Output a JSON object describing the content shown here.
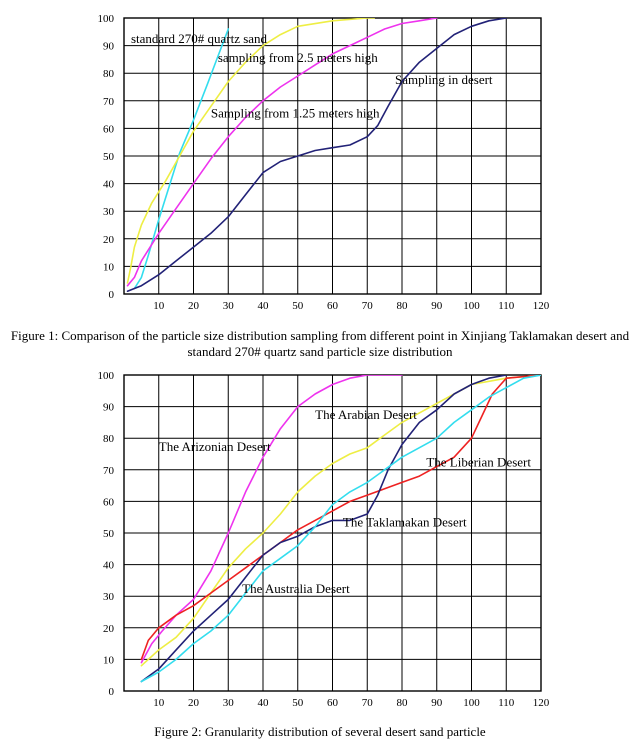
{
  "figure1_caption": "Figure 1: Comparison of the particle size distribution sampling from different point in Xinjiang Taklamakan desert and standard 270# quartz sand particle size distribution",
  "figure2_caption": "Figure 2:  Granularity distribution of several desert sand particle",
  "chart_data": [
    {
      "type": "line",
      "title": "",
      "xlabel": "",
      "ylabel": "",
      "xlim": [
        0,
        120
      ],
      "ylim": [
        0,
        100
      ],
      "xticks": [
        10,
        20,
        30,
        40,
        50,
        60,
        70,
        80,
        90,
        100,
        110,
        120
      ],
      "yticks": [
        0,
        10,
        20,
        30,
        40,
        50,
        60,
        70,
        80,
        90,
        100
      ],
      "grid": true,
      "series": [
        {
          "name": "standard 270# quartz sand",
          "color": "#33ddee",
          "x": [
            3,
            5,
            7,
            10,
            13,
            16,
            20,
            24,
            27,
            30
          ],
          "y": [
            2,
            6,
            14,
            27,
            39,
            51,
            63,
            76,
            86,
            96
          ]
        },
        {
          "name": "sampling from 2.5 meters high",
          "color": "#eeee44",
          "x": [
            1,
            2,
            3,
            5,
            8,
            12,
            16,
            20,
            25,
            30,
            35,
            40,
            45,
            50,
            60,
            70,
            72
          ],
          "y": [
            4,
            10,
            17,
            25,
            33,
            41,
            50,
            59,
            68,
            77,
            84,
            90,
            94,
            97,
            99,
            100,
            100
          ]
        },
        {
          "name": "Sampling from 1.25 meters high",
          "color": "#ee33ee",
          "x": [
            1,
            3,
            5,
            10,
            15,
            20,
            25,
            30,
            35,
            40,
            45,
            50,
            55,
            60,
            65,
            70,
            75,
            80,
            85,
            90
          ],
          "y": [
            3,
            6,
            12,
            22,
            31,
            40,
            49,
            57,
            64,
            70,
            75,
            79,
            83,
            87,
            90,
            93,
            96,
            98,
            99,
            100
          ]
        },
        {
          "name": "Sampling in desert",
          "color": "#222277",
          "x": [
            1,
            3,
            5,
            10,
            15,
            20,
            25,
            30,
            35,
            40,
            45,
            50,
            55,
            60,
            65,
            70,
            73,
            76,
            80,
            85,
            90,
            95,
            100,
            105,
            110
          ],
          "y": [
            1,
            2,
            3,
            7,
            12,
            17,
            22,
            28,
            36,
            44,
            48,
            50,
            52,
            53,
            54,
            57,
            61,
            68,
            77,
            84,
            89,
            94,
            97,
            99,
            100
          ]
        }
      ],
      "annotations": [
        {
          "text": "standard 270# quartz sand",
          "x": 2,
          "y": 91
        },
        {
          "text": "sampling from 2.5 meters high",
          "x": 27,
          "y": 84
        },
        {
          "text": "Sampling in desert",
          "x": 78,
          "y": 76
        },
        {
          "text": "Sampling from 1.25 meters high",
          "x": 25,
          "y": 64
        }
      ]
    },
    {
      "type": "line",
      "title": "",
      "xlabel": "",
      "ylabel": "",
      "xlim": [
        0,
        120
      ],
      "ylim": [
        0,
        100
      ],
      "xticks": [
        10,
        20,
        30,
        40,
        50,
        60,
        70,
        80,
        90,
        100,
        110,
        120
      ],
      "yticks": [
        0,
        10,
        20,
        30,
        40,
        50,
        60,
        70,
        80,
        90,
        100
      ],
      "grid": true,
      "series": [
        {
          "name": "The Arizonian Desert",
          "color": "#ee33ee",
          "x": [
            5,
            8,
            11,
            15,
            20,
            25,
            30,
            35,
            40,
            45,
            50,
            55,
            60,
            65,
            70,
            75,
            80
          ],
          "y": [
            9,
            15,
            19,
            24,
            29,
            38,
            50,
            63,
            74,
            83,
            90,
            94,
            97,
            99,
            100,
            100,
            100
          ]
        },
        {
          "name": "The Arabian Desert",
          "color": "#eeee44",
          "x": [
            5,
            10,
            15,
            20,
            25,
            30,
            35,
            40,
            45,
            50,
            55,
            60,
            65,
            70,
            75,
            80,
            85,
            90,
            95,
            100,
            110,
            120
          ],
          "y": [
            8,
            13,
            17,
            23,
            31,
            39,
            45,
            50,
            56,
            63,
            68,
            72,
            75,
            77,
            81,
            85,
            88,
            91,
            94,
            97,
            99,
            100
          ]
        },
        {
          "name": "The Liberian Desert",
          "color": "#ee2222",
          "x": [
            5,
            7,
            10,
            15,
            20,
            25,
            30,
            35,
            40,
            45,
            50,
            55,
            60,
            65,
            70,
            75,
            80,
            85,
            90,
            95,
            100,
            103,
            106,
            110,
            120
          ],
          "y": [
            10,
            16,
            20,
            24,
            27,
            31,
            35,
            39,
            43,
            47,
            51,
            54,
            57,
            60,
            62,
            64,
            66,
            68,
            71,
            74,
            80,
            87,
            94,
            99,
            100
          ]
        },
        {
          "name": "The Taklamakan Desert",
          "color": "#222277",
          "x": [
            5,
            10,
            15,
            20,
            25,
            30,
            35,
            40,
            45,
            50,
            55,
            60,
            65,
            70,
            73,
            76,
            80,
            85,
            90,
            95,
            100,
            105,
            110
          ],
          "y": [
            3,
            7,
            13,
            19,
            24,
            29,
            36,
            43,
            47,
            49,
            52,
            54,
            54,
            56,
            62,
            70,
            78,
            85,
            89,
            94,
            97,
            99,
            100
          ]
        },
        {
          "name": "The Australia Desert",
          "color": "#33ddee",
          "x": [
            5,
            10,
            15,
            20,
            25,
            30,
            35,
            40,
            45,
            50,
            55,
            60,
            65,
            70,
            75,
            80,
            85,
            90,
            95,
            100,
            105,
            110,
            115,
            120
          ],
          "y": [
            3,
            6,
            10,
            15,
            19,
            24,
            31,
            38,
            42,
            46,
            52,
            59,
            63,
            66,
            70,
            74,
            77,
            80,
            85,
            89,
            93,
            96,
            99,
            100
          ]
        }
      ],
      "annotations": [
        {
          "text": "The Arabian Desert",
          "x": 55,
          "y": 86
        },
        {
          "text": "The Arizonian Desert",
          "x": 10,
          "y": 76
        },
        {
          "text": "The Liberian Desert",
          "x": 87,
          "y": 71
        },
        {
          "text": "The Taklamakan Desert",
          "x": 63,
          "y": 52
        },
        {
          "text": "The Australia Desert",
          "x": 34,
          "y": 31
        }
      ]
    }
  ]
}
